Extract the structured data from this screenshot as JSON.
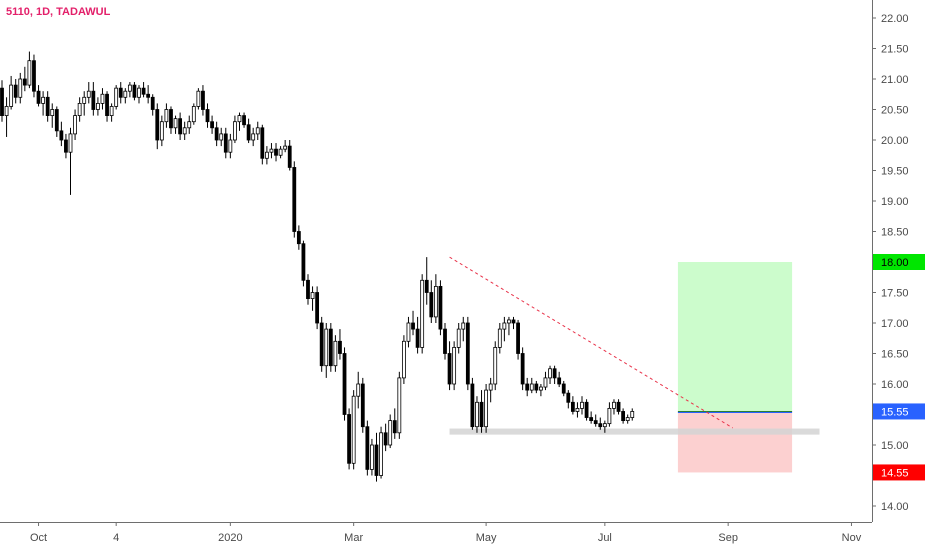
{
  "symbol_label": "5110, 1D, TADAWUL",
  "chart_data": {
    "type": "candlestick",
    "symbol": "5110",
    "interval": "1D",
    "exchange": "TADAWUL",
    "y_axis": {
      "ylim": [
        13.75,
        22.25
      ],
      "ticks": [
        "22.00",
        "21.50",
        "21.00",
        "20.50",
        "20.00",
        "19.50",
        "19.00",
        "18.50",
        "18.00",
        "17.50",
        "17.00",
        "16.50",
        "16.00",
        "15.50",
        "15.00",
        "14.50",
        "14.00"
      ]
    },
    "x_axis": {
      "ticks": [
        {
          "label": "Oct",
          "index": 8
        },
        {
          "label": "4",
          "index": 25
        },
        {
          "label": "2020",
          "index": 50
        },
        {
          "label": "Mar",
          "index": 77
        },
        {
          "label": "May",
          "index": 106
        },
        {
          "label": "Jul",
          "index": 132
        },
        {
          "label": "Sep",
          "index": 159
        },
        {
          "label": "Nov",
          "index": 186
        }
      ],
      "index_range": [
        0,
        203
      ]
    },
    "price_labels": [
      {
        "value": 18.0,
        "text": "18.00",
        "bg": "#00e600",
        "fg": "#000000"
      },
      {
        "value": 15.55,
        "text": "15.55",
        "bg": "#2962ff",
        "fg": "#ffffff"
      },
      {
        "value": 14.55,
        "text": "14.55",
        "bg": "#ff0000",
        "fg": "#ffffff"
      }
    ],
    "trendline": {
      "from": {
        "index": 98,
        "price": 18.08
      },
      "to": {
        "index": 160,
        "price": 15.28
      },
      "color": "#e8334a"
    },
    "support_zone": {
      "from_index": 98,
      "to_index": 179,
      "low": 15.17,
      "high": 15.27,
      "color": "#d3d3d3"
    },
    "position": {
      "from_index": 148,
      "to_index": 173,
      "entry": 15.55,
      "target": 18.0,
      "stop": 14.55,
      "profit_color": "#ccfccc",
      "loss_color": "#fcd0d0"
    },
    "candles": [
      [
        20.85,
        20.98,
        20.3,
        20.4
      ],
      [
        20.4,
        20.7,
        20.05,
        20.55
      ],
      [
        20.55,
        21.05,
        20.5,
        20.9
      ],
      [
        20.9,
        21.0,
        20.6,
        20.7
      ],
      [
        20.7,
        21.1,
        20.6,
        21.0
      ],
      [
        21.0,
        21.2,
        20.8,
        20.9
      ],
      [
        20.9,
        21.45,
        20.85,
        21.3
      ],
      [
        21.3,
        21.4,
        20.7,
        20.8
      ],
      [
        20.8,
        20.9,
        20.55,
        20.6
      ],
      [
        20.6,
        20.8,
        20.4,
        20.7
      ],
      [
        20.7,
        20.8,
        20.3,
        20.4
      ],
      [
        20.4,
        20.6,
        20.2,
        20.5
      ],
      [
        20.5,
        20.55,
        20.05,
        20.15
      ],
      [
        20.15,
        20.3,
        19.9,
        20.0
      ],
      [
        20.0,
        20.1,
        19.7,
        19.8
      ],
      [
        19.8,
        20.2,
        19.1,
        20.1
      ],
      [
        20.1,
        20.5,
        20.0,
        20.4
      ],
      [
        20.4,
        20.7,
        20.3,
        20.6
      ],
      [
        20.6,
        20.8,
        20.4,
        20.7
      ],
      [
        20.7,
        20.95,
        20.6,
        20.8
      ],
      [
        20.8,
        20.95,
        20.4,
        20.5
      ],
      [
        20.5,
        20.7,
        20.4,
        20.6
      ],
      [
        20.6,
        20.85,
        20.5,
        20.75
      ],
      [
        20.75,
        20.8,
        20.3,
        20.4
      ],
      [
        20.4,
        20.6,
        20.3,
        20.55
      ],
      [
        20.55,
        20.9,
        20.5,
        20.85
      ],
      [
        20.85,
        20.95,
        20.6,
        20.7
      ],
      [
        20.7,
        20.85,
        20.6,
        20.8
      ],
      [
        20.8,
        20.95,
        20.7,
        20.9
      ],
      [
        20.9,
        20.95,
        20.65,
        20.7
      ],
      [
        20.7,
        20.9,
        20.6,
        20.85
      ],
      [
        20.85,
        20.95,
        20.7,
        20.75
      ],
      [
        20.75,
        20.9,
        20.6,
        20.7
      ],
      [
        20.7,
        20.75,
        20.4,
        20.5
      ],
      [
        20.5,
        20.6,
        19.85,
        20.0
      ],
      [
        20.0,
        20.4,
        19.9,
        20.3
      ],
      [
        20.3,
        20.6,
        20.2,
        20.5
      ],
      [
        20.5,
        20.55,
        20.1,
        20.2
      ],
      [
        20.2,
        20.4,
        20.1,
        20.35
      ],
      [
        20.35,
        20.45,
        20.0,
        20.1
      ],
      [
        20.1,
        20.3,
        20.0,
        20.2
      ],
      [
        20.2,
        20.4,
        20.1,
        20.3
      ],
      [
        20.3,
        20.6,
        20.25,
        20.55
      ],
      [
        20.55,
        20.85,
        20.5,
        20.8
      ],
      [
        20.8,
        20.9,
        20.4,
        20.5
      ],
      [
        20.5,
        20.6,
        20.2,
        20.3
      ],
      [
        20.3,
        20.4,
        20.1,
        20.2
      ],
      [
        20.2,
        20.3,
        19.9,
        20.0
      ],
      [
        20.0,
        20.2,
        19.9,
        20.1
      ],
      [
        20.1,
        20.2,
        19.7,
        19.8
      ],
      [
        19.8,
        20.1,
        19.7,
        20.0
      ],
      [
        20.0,
        20.4,
        19.95,
        20.3
      ],
      [
        20.3,
        20.45,
        20.15,
        20.4
      ],
      [
        20.4,
        20.45,
        20.2,
        20.25
      ],
      [
        20.25,
        20.35,
        19.95,
        20.0
      ],
      [
        20.0,
        20.2,
        19.9,
        20.1
      ],
      [
        20.1,
        20.3,
        20.0,
        20.2
      ],
      [
        20.2,
        20.25,
        19.6,
        19.7
      ],
      [
        19.7,
        19.9,
        19.6,
        19.8
      ],
      [
        19.8,
        19.95,
        19.7,
        19.85
      ],
      [
        19.85,
        19.95,
        19.65,
        19.75
      ],
      [
        19.75,
        19.9,
        19.7,
        19.85
      ],
      [
        19.85,
        20.0,
        19.8,
        19.9
      ],
      [
        19.9,
        20.0,
        19.5,
        19.55
      ],
      [
        19.55,
        19.65,
        18.4,
        18.5
      ],
      [
        18.5,
        18.6,
        18.2,
        18.3
      ],
      [
        18.3,
        18.35,
        17.6,
        17.7
      ],
      [
        17.7,
        17.8,
        17.3,
        17.4
      ],
      [
        17.4,
        17.6,
        17.2,
        17.5
      ],
      [
        17.5,
        17.6,
        16.9,
        17.0
      ],
      [
        17.0,
        17.1,
        16.2,
        16.3
      ],
      [
        16.3,
        17.0,
        16.1,
        16.9
      ],
      [
        16.9,
        17.0,
        16.2,
        16.3
      ],
      [
        16.3,
        16.8,
        16.2,
        16.7
      ],
      [
        16.7,
        16.9,
        16.4,
        16.5
      ],
      [
        16.5,
        16.6,
        15.4,
        15.5
      ],
      [
        15.5,
        15.6,
        14.6,
        14.7
      ],
      [
        14.7,
        15.9,
        14.6,
        15.8
      ],
      [
        15.8,
        16.2,
        15.6,
        16.0
      ],
      [
        16.0,
        16.1,
        15.2,
        15.3
      ],
      [
        15.3,
        15.4,
        14.5,
        14.6
      ],
      [
        14.6,
        15.1,
        14.5,
        15.0
      ],
      [
        15.0,
        15.2,
        14.4,
        14.5
      ],
      [
        14.5,
        15.3,
        14.45,
        15.2
      ],
      [
        15.2,
        15.35,
        14.9,
        15.0
      ],
      [
        15.0,
        15.5,
        14.95,
        15.4
      ],
      [
        15.4,
        15.6,
        15.1,
        15.2
      ],
      [
        15.2,
        16.2,
        15.1,
        16.1
      ],
      [
        16.1,
        16.8,
        16.0,
        16.7
      ],
      [
        16.7,
        17.1,
        16.6,
        17.0
      ],
      [
        17.0,
        17.2,
        16.8,
        16.9
      ],
      [
        16.9,
        17.1,
        16.5,
        16.6
      ],
      [
        16.6,
        17.8,
        16.5,
        17.7
      ],
      [
        17.7,
        18.08,
        17.3,
        17.5
      ],
      [
        17.5,
        17.7,
        17.0,
        17.1
      ],
      [
        17.1,
        17.8,
        17.0,
        17.6
      ],
      [
        17.6,
        17.7,
        16.8,
        16.9
      ],
      [
        16.9,
        17.0,
        16.4,
        16.5
      ],
      [
        16.5,
        16.7,
        15.9,
        16.0
      ],
      [
        16.0,
        16.7,
        15.9,
        16.6
      ],
      [
        16.6,
        17.0,
        16.5,
        16.9
      ],
      [
        16.9,
        17.1,
        16.7,
        17.0
      ],
      [
        17.0,
        17.1,
        15.9,
        16.0
      ],
      [
        16.0,
        16.1,
        15.25,
        15.3
      ],
      [
        15.3,
        15.8,
        15.2,
        15.7
      ],
      [
        15.7,
        15.9,
        15.2,
        15.3
      ],
      [
        15.3,
        16.0,
        15.2,
        15.9
      ],
      [
        15.9,
        16.1,
        15.7,
        16.0
      ],
      [
        16.0,
        16.7,
        15.9,
        16.6
      ],
      [
        16.6,
        17.0,
        16.5,
        16.9
      ],
      [
        16.9,
        17.1,
        16.7,
        17.0
      ],
      [
        17.0,
        17.1,
        16.8,
        17.05
      ],
      [
        17.05,
        17.1,
        16.9,
        17.0
      ],
      [
        17.0,
        17.05,
        16.4,
        16.5
      ],
      [
        16.5,
        16.6,
        15.9,
        16.0
      ],
      [
        16.0,
        16.1,
        15.8,
        15.9
      ],
      [
        15.9,
        16.1,
        15.85,
        16.0
      ],
      [
        16.0,
        16.05,
        15.85,
        15.9
      ],
      [
        15.9,
        16.0,
        15.8,
        15.95
      ],
      [
        15.95,
        16.2,
        15.9,
        16.1
      ],
      [
        16.1,
        16.3,
        16.0,
        16.25
      ],
      [
        16.25,
        16.3,
        16.0,
        16.1
      ],
      [
        16.1,
        16.2,
        15.95,
        16.0
      ],
      [
        16.0,
        16.05,
        15.8,
        15.85
      ],
      [
        15.85,
        15.9,
        15.6,
        15.7
      ],
      [
        15.7,
        15.8,
        15.5,
        15.55
      ],
      [
        15.55,
        15.7,
        15.45,
        15.6
      ],
      [
        15.6,
        15.8,
        15.5,
        15.7
      ],
      [
        15.7,
        15.75,
        15.4,
        15.45
      ],
      [
        15.45,
        15.55,
        15.35,
        15.4
      ],
      [
        15.4,
        15.5,
        15.3,
        15.35
      ],
      [
        15.35,
        15.45,
        15.25,
        15.3
      ],
      [
        15.3,
        15.4,
        15.2,
        15.35
      ],
      [
        15.35,
        15.7,
        15.3,
        15.6
      ],
      [
        15.6,
        15.75,
        15.5,
        15.7
      ],
      [
        15.7,
        15.75,
        15.5,
        15.55
      ],
      [
        15.55,
        15.6,
        15.35,
        15.4
      ],
      [
        15.4,
        15.5,
        15.35,
        15.45
      ],
      [
        15.45,
        15.6,
        15.4,
        15.55
      ]
    ]
  }
}
